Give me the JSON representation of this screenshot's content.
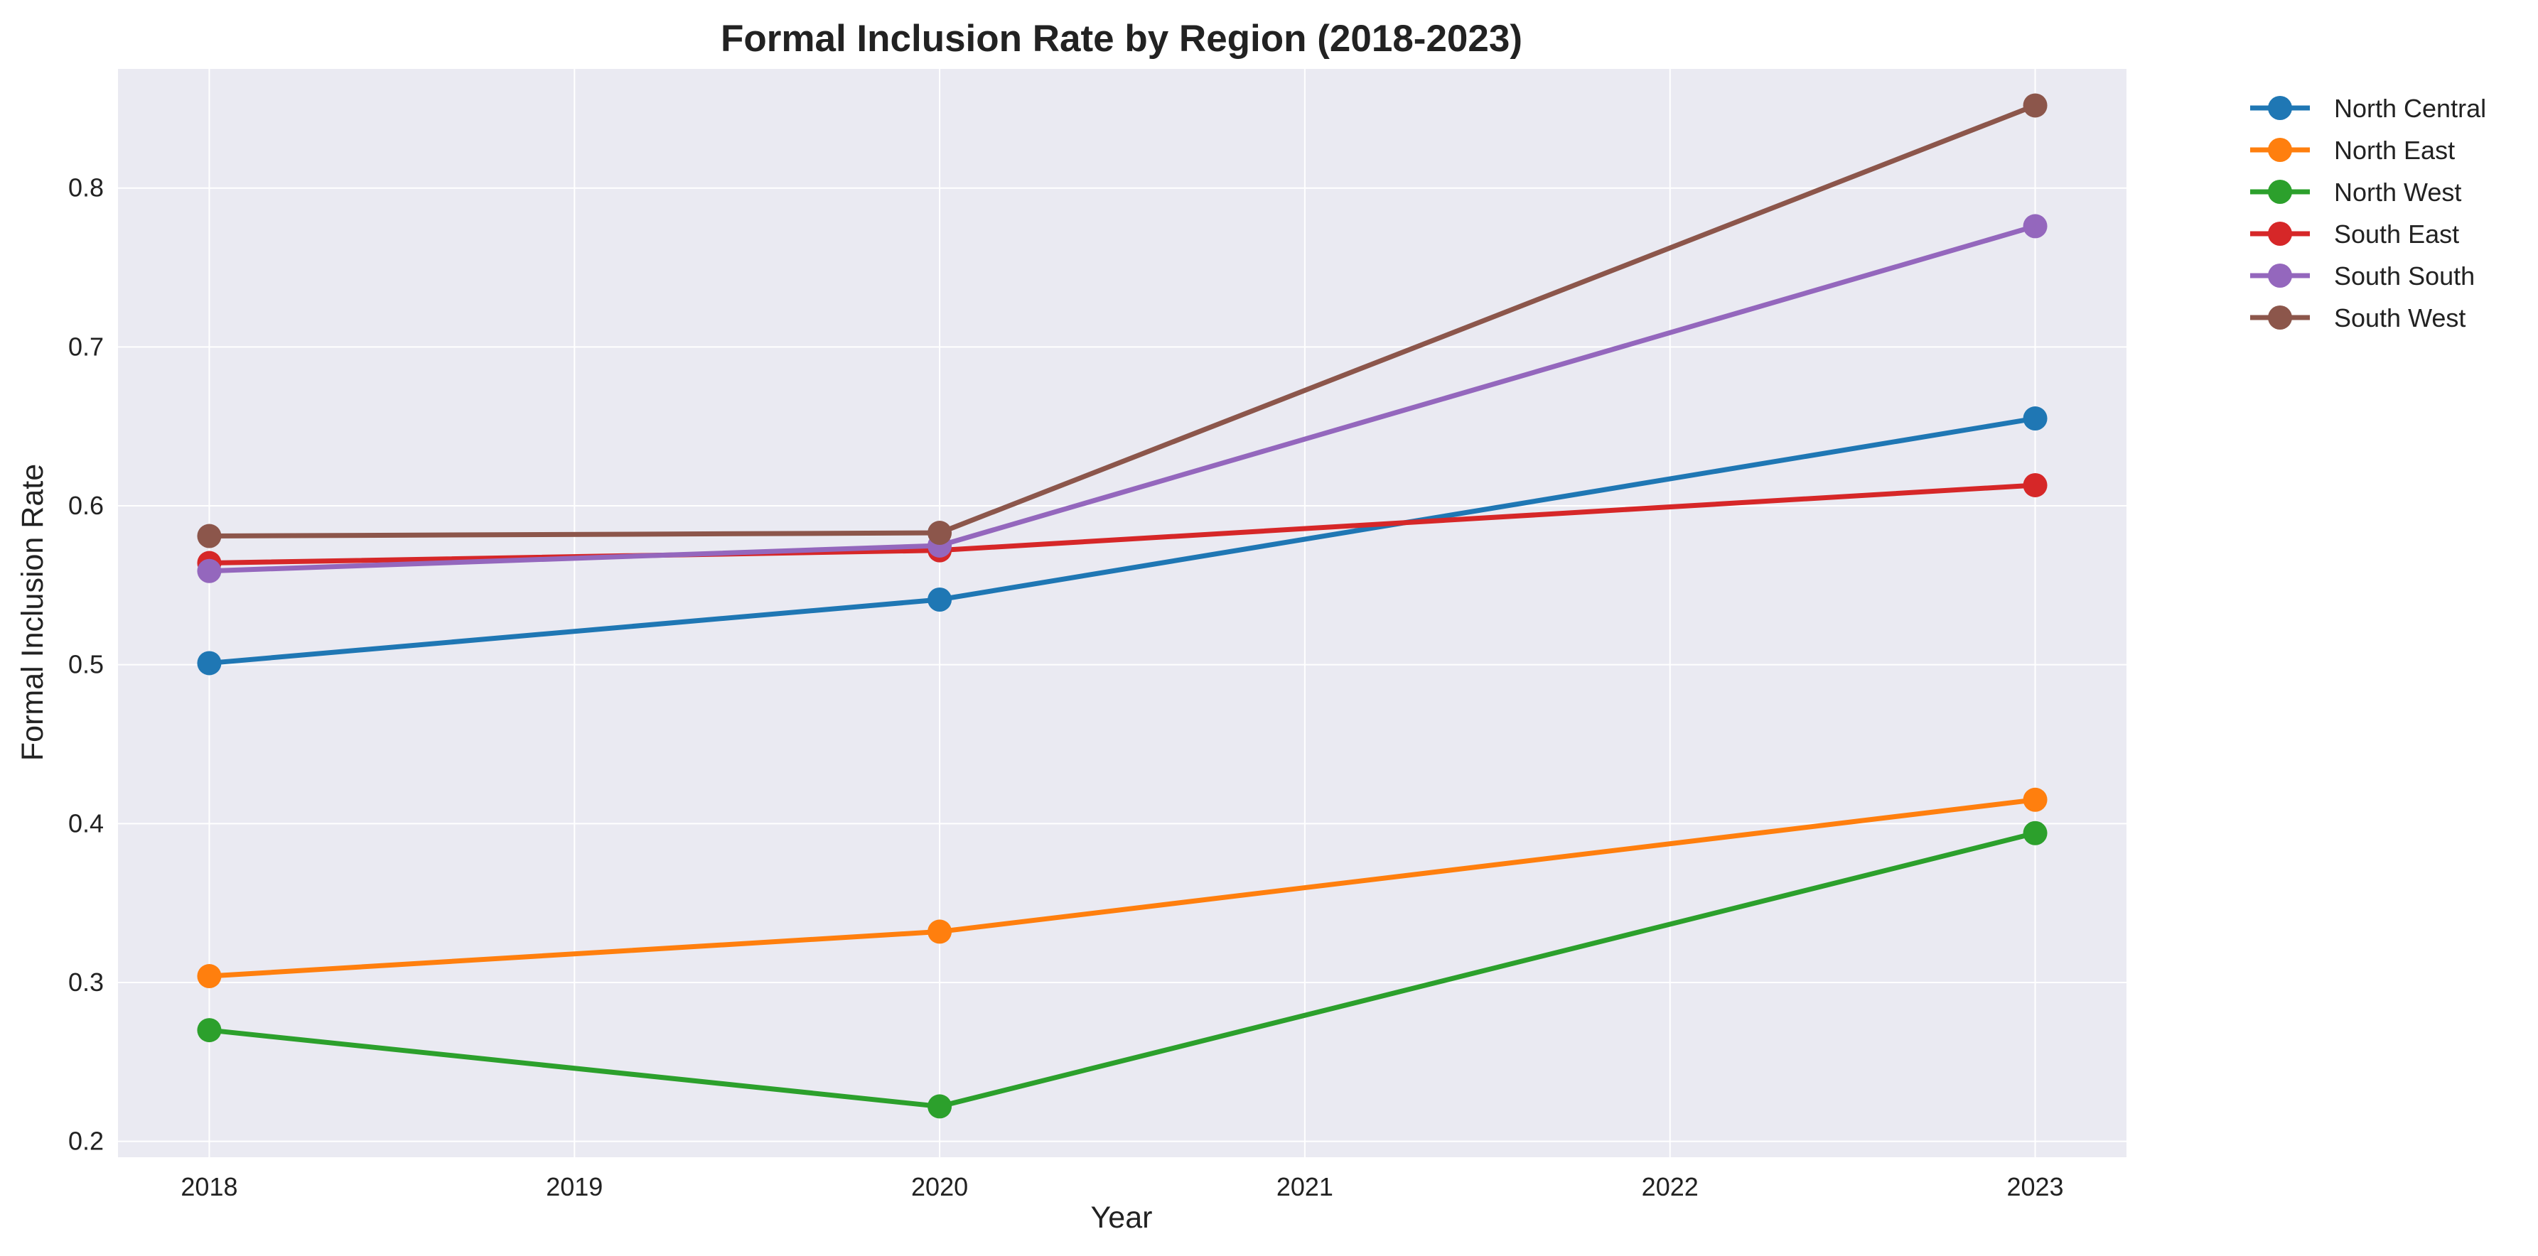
{
  "chart_data": {
    "type": "line",
    "title": "Formal Inclusion Rate by Region (2018-2023)",
    "xlabel": "Year",
    "ylabel": "Formal Inclusion Rate",
    "x": [
      2018,
      2020,
      2023
    ],
    "xticks": [
      "2018",
      "2019",
      "2020",
      "2021",
      "2022",
      "2023"
    ],
    "yticks": [
      "0.2",
      "0.3",
      "0.4",
      "0.5",
      "0.6",
      "0.7",
      "0.8"
    ],
    "xlim": [
      2017.75,
      2023.25
    ],
    "ylim": [
      0.19,
      0.875
    ],
    "grid": true,
    "legend_position": "outside-top-right",
    "series": [
      {
        "name": "North Central",
        "color": "#1f77b4",
        "values": [
          0.501,
          0.541,
          0.655
        ]
      },
      {
        "name": "North East",
        "color": "#ff7f0e",
        "values": [
          0.304,
          0.332,
          0.415
        ]
      },
      {
        "name": "North West",
        "color": "#2ca02c",
        "values": [
          0.27,
          0.222,
          0.394
        ]
      },
      {
        "name": "South East",
        "color": "#d62728",
        "values": [
          0.564,
          0.572,
          0.613
        ]
      },
      {
        "name": "South South",
        "color": "#9467bd",
        "values": [
          0.559,
          0.575,
          0.776
        ]
      },
      {
        "name": "South West",
        "color": "#8c564b",
        "values": [
          0.581,
          0.583,
          0.852
        ]
      }
    ]
  }
}
